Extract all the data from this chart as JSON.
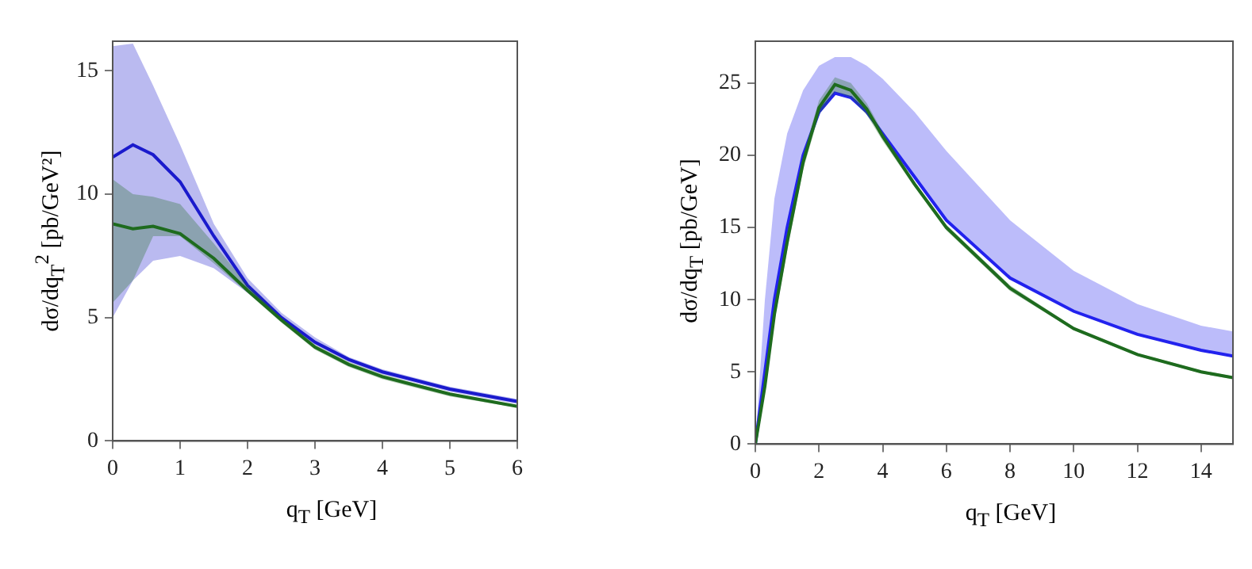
{
  "chart_data": [
    {
      "type": "line",
      "xlabel": "q$_{T}$ [GeV]",
      "ylabel": "dσ/dq$_{T}$$^{2}$ [pb/GeV²]",
      "xlim": [
        0,
        6
      ],
      "xticks": [
        0,
        1,
        2,
        3,
        4,
        5,
        6
      ],
      "ylim": [
        0,
        16.2
      ],
      "yticks": [
        0,
        5,
        10,
        15
      ],
      "grid": false,
      "legend": false,
      "x": [
        0,
        0.3,
        0.6,
        1,
        1.5,
        2,
        2.5,
        3,
        3.5,
        4,
        5,
        6
      ],
      "series": [
        {
          "color": "#1a1acc",
          "values": [
            11.5,
            12.0,
            11.6,
            10.5,
            8.3,
            6.3,
            5.0,
            4.0,
            3.3,
            2.8,
            2.1,
            1.6
          ],
          "upper": [
            16.0,
            16.1,
            14.4,
            12.0,
            8.8,
            6.6,
            5.2,
            4.2,
            3.4,
            2.9,
            2.2,
            1.7
          ],
          "lower": [
            5.0,
            6.5,
            7.3,
            7.5,
            7.0,
            6.0,
            4.9,
            3.9,
            3.2,
            2.7,
            2.0,
            1.5
          ]
        },
        {
          "color": "#1e6b1e",
          "values": [
            8.8,
            8.6,
            8.7,
            8.4,
            7.4,
            6.1,
            4.9,
            3.8,
            3.1,
            2.6,
            1.9,
            1.4
          ],
          "upper": [
            10.6,
            10.0,
            9.9,
            9.6,
            8.0,
            6.3,
            5.0,
            3.9,
            3.2,
            2.7,
            1.95,
            1.45
          ],
          "lower": [
            5.6,
            6.5,
            8.3,
            8.3,
            7.2,
            6.0,
            4.8,
            3.7,
            3.0,
            2.5,
            1.8,
            1.35
          ]
        }
      ]
    },
    {
      "type": "line",
      "xlabel": "q$_{T}$ [GeV]",
      "ylabel": "dσ/dq$_{T}$ [pb/GeV]",
      "xlim": [
        0,
        15
      ],
      "xticks": [
        0,
        2,
        4,
        6,
        8,
        10,
        12,
        14
      ],
      "ylim": [
        0,
        27.9
      ],
      "yticks": [
        0,
        5,
        10,
        15,
        20,
        25
      ],
      "grid": false,
      "legend": false,
      "x": [
        0,
        0.3,
        0.6,
        1,
        1.5,
        2,
        2.5,
        3,
        3.5,
        4,
        5,
        6,
        8,
        10,
        12,
        14,
        15
      ],
      "series": [
        {
          "color": "#2222ee",
          "values": [
            0,
            5,
            10,
            15,
            20,
            23,
            24.3,
            24,
            23,
            21.5,
            18.5,
            15.5,
            11.5,
            9.2,
            7.6,
            6.5,
            6.1
          ],
          "upper": [
            0,
            10,
            17,
            21.5,
            24.5,
            26.2,
            26.8,
            26.8,
            26.2,
            25.3,
            23,
            20.3,
            15.5,
            12,
            9.7,
            8.2,
            7.8
          ],
          "lower": [
            0,
            5,
            10,
            15,
            20,
            23,
            24.3,
            24,
            23,
            21.5,
            18.5,
            15.5,
            11.5,
            9.2,
            7.6,
            6.5,
            6.1
          ]
        },
        {
          "color": "#1e6b1e",
          "values": [
            0,
            4,
            9,
            14,
            19.5,
            23.3,
            24.9,
            24.5,
            23.2,
            21.3,
            18,
            15,
            10.8,
            8,
            6.2,
            5,
            4.6
          ],
          "upper": [
            0,
            4.3,
            9.5,
            14.6,
            20,
            23.8,
            25.4,
            25.0,
            23.6,
            21.6,
            18.2,
            15.2,
            11,
            8.1,
            6.3,
            5.1,
            4.7
          ],
          "lower": [
            0,
            3.7,
            8.5,
            13.4,
            19,
            22.8,
            24.4,
            24.0,
            22.8,
            21.0,
            17.8,
            14.8,
            10.6,
            7.9,
            6.1,
            4.9,
            4.5
          ]
        }
      ]
    }
  ]
}
